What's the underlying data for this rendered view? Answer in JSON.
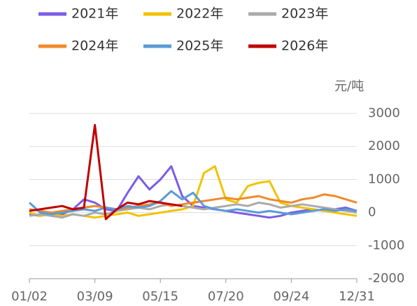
{
  "chart_data": {
    "type": "line",
    "y_unit": "元/吨",
    "categories": [
      "01/02",
      null,
      null,
      null,
      null,
      null,
      "03/09",
      null,
      null,
      null,
      null,
      null,
      "05/15",
      null,
      null,
      null,
      null,
      null,
      "07/20",
      null,
      null,
      null,
      null,
      null,
      "09/24",
      null,
      null,
      null,
      null,
      null,
      "12/31"
    ],
    "series": [
      {
        "name": "2021年",
        "color": "#7b5ce5",
        "values": [
          -50,
          -100,
          0,
          -50,
          100,
          400,
          300,
          100,
          50,
          600,
          1100,
          700,
          1000,
          1400,
          500,
          200,
          150,
          100,
          50,
          0,
          -50,
          -100,
          -150,
          -100,
          0,
          50,
          100,
          50,
          100,
          150,
          50
        ]
      },
      {
        "name": "2022年",
        "color": "#f2c200",
        "values": [
          0,
          -100,
          -50,
          -100,
          -50,
          -100,
          -150,
          -100,
          -50,
          0,
          -100,
          -50,
          0,
          50,
          100,
          200,
          1200,
          1400,
          400,
          300,
          800,
          900,
          950,
          300,
          200,
          150,
          100,
          50,
          0,
          -50,
          -100
        ]
      },
      {
        "name": "2023年",
        "color": "#aaaaaa",
        "values": [
          -100,
          -50,
          -100,
          -150,
          -50,
          -100,
          0,
          -50,
          50,
          100,
          150,
          100,
          200,
          250,
          200,
          150,
          100,
          150,
          200,
          250,
          200,
          300,
          250,
          150,
          200,
          250,
          200,
          150,
          100,
          50,
          0
        ]
      },
      {
        "name": "2024年",
        "color": "#f0892b",
        "values": [
          100,
          50,
          0,
          50,
          100,
          150,
          200,
          150,
          100,
          150,
          200,
          250,
          300,
          200,
          250,
          300,
          350,
          400,
          450,
          400,
          450,
          500,
          400,
          350,
          300,
          400,
          450,
          550,
          500,
          400,
          300
        ]
      },
      {
        "name": "2025年",
        "color": "#5b9bd5",
        "values": [
          300,
          0,
          -50,
          0,
          50,
          100,
          50,
          150,
          100,
          200,
          150,
          200,
          350,
          650,
          400,
          600,
          200,
          100,
          50,
          100,
          50,
          0,
          50,
          0,
          -50,
          0,
          50,
          100,
          50,
          100,
          50
        ]
      },
      {
        "name": "2026年",
        "color": "#c00000",
        "values": [
          50,
          100,
          150,
          200,
          100,
          150,
          2650,
          -200,
          100,
          300,
          250,
          350,
          300,
          250,
          200,
          null,
          null,
          null,
          null,
          null,
          null,
          null,
          null,
          null,
          null,
          null,
          null,
          null,
          null,
          null,
          null
        ]
      }
    ],
    "ylim": [
      -2000,
      3000
    ],
    "yticks": [
      -2000,
      -1000,
      0,
      1000,
      2000,
      3000
    ],
    "grid": true,
    "yaxis_position": "right",
    "legend": "top"
  }
}
